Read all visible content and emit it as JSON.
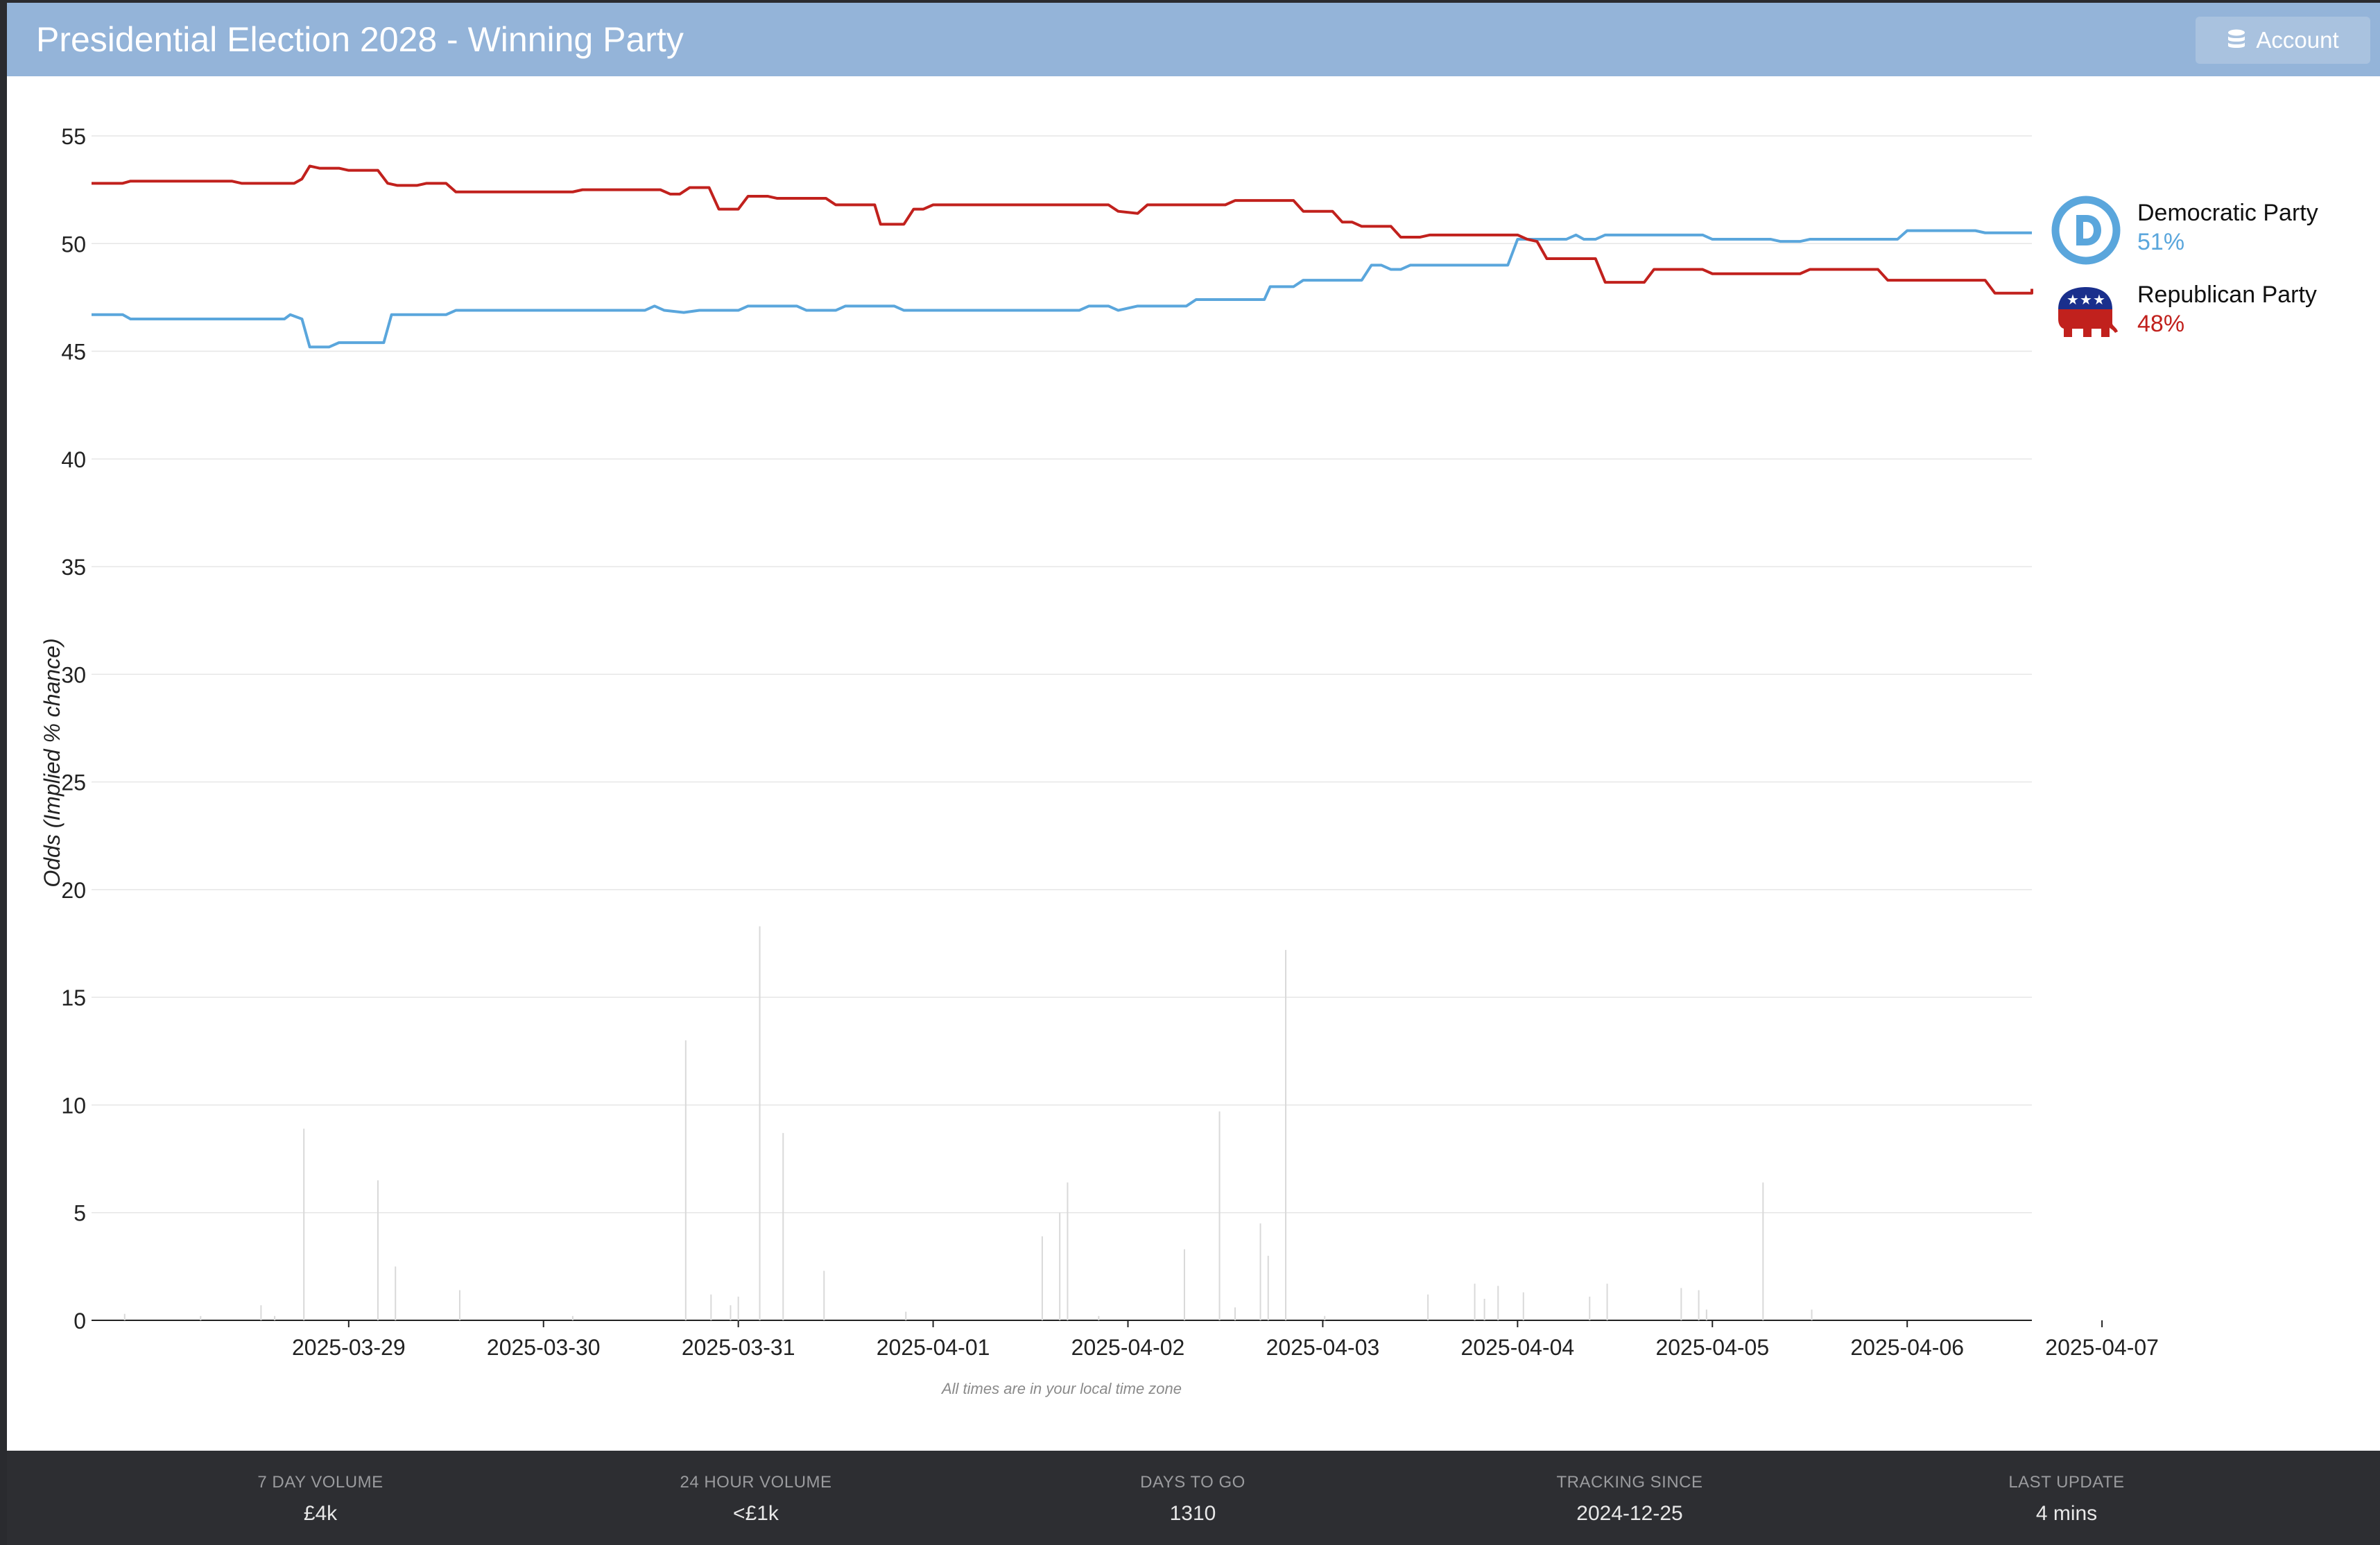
{
  "header": {
    "title": "Presidential Election 2028 - Winning Party",
    "account_label": "Account"
  },
  "legend": [
    {
      "name": "Democratic Party",
      "pct": "51%",
      "color": "#5aa6dc",
      "icon": "democratic-donkey-logo-icon"
    },
    {
      "name": "Republican Party",
      "pct": "48%",
      "color": "#c1211d",
      "icon": "republican-elephant-logo-icon"
    }
  ],
  "chart_data": {
    "type": "line",
    "ylabel": "Odds (Implied % chance)",
    "xlabel": "",
    "note": "All times are in your local time zone",
    "ylim": [
      0,
      55
    ],
    "yticks": [
      0,
      5,
      10,
      15,
      20,
      25,
      30,
      35,
      40,
      45,
      50,
      55
    ],
    "grid": true,
    "legend_position": "right",
    "x_start": "2025-03-28",
    "xlim": [
      -0.32,
      9.64
    ],
    "xticks": [
      "2025-03-29",
      "2025-03-30",
      "2025-03-31",
      "2025-04-01",
      "2025-04-02",
      "2025-04-03",
      "2025-04-04",
      "2025-04-05",
      "2025-04-06",
      "2025-04-07"
    ],
    "series": [
      {
        "name": "Democratic Party",
        "color": "#5aa6dc",
        "points": [
          [
            -0.32,
            46.7
          ],
          [
            -0.16,
            46.7
          ],
          [
            -0.12,
            46.5
          ],
          [
            0.67,
            46.5
          ],
          [
            0.7,
            46.7
          ],
          [
            0.76,
            46.5
          ],
          [
            0.8,
            45.2
          ],
          [
            0.9,
            45.2
          ],
          [
            0.95,
            45.4
          ],
          [
            1.18,
            45.4
          ],
          [
            1.22,
            46.7
          ],
          [
            1.5,
            46.7
          ],
          [
            1.55,
            46.9
          ],
          [
            2.52,
            46.9
          ],
          [
            2.57,
            47.1
          ],
          [
            2.62,
            46.9
          ],
          [
            2.72,
            46.8
          ],
          [
            2.8,
            46.9
          ],
          [
            3.0,
            46.9
          ],
          [
            3.05,
            47.1
          ],
          [
            3.3,
            47.1
          ],
          [
            3.35,
            46.9
          ],
          [
            3.5,
            46.9
          ],
          [
            3.55,
            47.1
          ],
          [
            3.8,
            47.1
          ],
          [
            3.85,
            46.9
          ],
          [
            4.75,
            46.9
          ],
          [
            4.8,
            47.1
          ],
          [
            4.9,
            47.1
          ],
          [
            4.95,
            46.9
          ],
          [
            5.05,
            47.1
          ],
          [
            5.3,
            47.1
          ],
          [
            5.35,
            47.4
          ],
          [
            5.7,
            47.4
          ],
          [
            5.73,
            48.0
          ],
          [
            5.85,
            48.0
          ],
          [
            5.9,
            48.3
          ],
          [
            6.2,
            48.3
          ],
          [
            6.25,
            49.0
          ],
          [
            6.3,
            49.0
          ],
          [
            6.35,
            48.8
          ],
          [
            6.4,
            48.8
          ],
          [
            6.45,
            49.0
          ],
          [
            6.95,
            49.0
          ],
          [
            7.0,
            50.2
          ],
          [
            7.25,
            50.2
          ],
          [
            7.3,
            50.4
          ],
          [
            7.34,
            50.2
          ],
          [
            7.4,
            50.2
          ],
          [
            7.45,
            50.4
          ],
          [
            7.95,
            50.4
          ],
          [
            8.0,
            50.2
          ],
          [
            8.3,
            50.2
          ],
          [
            8.35,
            50.1
          ],
          [
            8.45,
            50.1
          ],
          [
            8.5,
            50.2
          ],
          [
            8.95,
            50.2
          ],
          [
            9.0,
            50.6
          ],
          [
            9.35,
            50.6
          ],
          [
            9.4,
            50.5
          ],
          [
            9.64,
            50.5
          ]
        ]
      },
      {
        "name": "Republican Party",
        "color": "#c1211d",
        "points": [
          [
            -0.32,
            52.8
          ],
          [
            -0.16,
            52.8
          ],
          [
            -0.12,
            52.9
          ],
          [
            0.4,
            52.9
          ],
          [
            0.45,
            52.8
          ],
          [
            0.72,
            52.8
          ],
          [
            0.76,
            53.0
          ],
          [
            0.8,
            53.6
          ],
          [
            0.85,
            53.5
          ],
          [
            0.95,
            53.5
          ],
          [
            1.0,
            53.4
          ],
          [
            1.15,
            53.4
          ],
          [
            1.2,
            52.8
          ],
          [
            1.25,
            52.7
          ],
          [
            1.35,
            52.7
          ],
          [
            1.4,
            52.8
          ],
          [
            1.5,
            52.8
          ],
          [
            1.55,
            52.4
          ],
          [
            2.15,
            52.4
          ],
          [
            2.2,
            52.5
          ],
          [
            2.6,
            52.5
          ],
          [
            2.65,
            52.3
          ],
          [
            2.7,
            52.3
          ],
          [
            2.75,
            52.6
          ],
          [
            2.85,
            52.6
          ],
          [
            2.9,
            51.6
          ],
          [
            3.0,
            51.6
          ],
          [
            3.05,
            52.2
          ],
          [
            3.15,
            52.2
          ],
          [
            3.2,
            52.1
          ],
          [
            3.45,
            52.1
          ],
          [
            3.5,
            51.8
          ],
          [
            3.7,
            51.8
          ],
          [
            3.73,
            50.9
          ],
          [
            3.85,
            50.9
          ],
          [
            3.9,
            51.6
          ],
          [
            3.95,
            51.6
          ],
          [
            4.0,
            51.8
          ],
          [
            4.9,
            51.8
          ],
          [
            4.95,
            51.5
          ],
          [
            5.05,
            51.4
          ],
          [
            5.1,
            51.8
          ],
          [
            5.5,
            51.8
          ],
          [
            5.55,
            52.0
          ],
          [
            5.85,
            52.0
          ],
          [
            5.9,
            51.5
          ],
          [
            6.05,
            51.5
          ],
          [
            6.1,
            51.0
          ],
          [
            6.15,
            51.0
          ],
          [
            6.2,
            50.8
          ],
          [
            6.35,
            50.8
          ],
          [
            6.4,
            50.3
          ],
          [
            6.5,
            50.3
          ],
          [
            6.55,
            50.4
          ],
          [
            7.0,
            50.4
          ],
          [
            7.05,
            50.2
          ],
          [
            7.1,
            50.1
          ],
          [
            7.15,
            49.3
          ],
          [
            7.4,
            49.3
          ],
          [
            7.45,
            48.2
          ],
          [
            7.65,
            48.2
          ],
          [
            7.7,
            48.8
          ],
          [
            7.95,
            48.8
          ],
          [
            8.0,
            48.6
          ],
          [
            8.45,
            48.6
          ],
          [
            8.5,
            48.8
          ],
          [
            8.85,
            48.8
          ],
          [
            8.9,
            48.3
          ],
          [
            9.4,
            48.3
          ],
          [
            9.45,
            47.7
          ],
          [
            9.72,
            47.7
          ],
          [
            9.78,
            47.9
          ],
          [
            9.64,
            47.9
          ]
        ]
      },
      {
        "name": "Volume",
        "type": "bar",
        "color": "#d9d9d9",
        "points": [
          [
            -0.15,
            0.3
          ],
          [
            0.24,
            0.2
          ],
          [
            0.55,
            0.7
          ],
          [
            0.62,
            0.2
          ],
          [
            0.77,
            8.9
          ],
          [
            1.15,
            6.5
          ],
          [
            1.24,
            2.5
          ],
          [
            1.57,
            1.4
          ],
          [
            2.15,
            0.2
          ],
          [
            2.73,
            13.0
          ],
          [
            2.86,
            1.2
          ],
          [
            2.96,
            0.7
          ],
          [
            3.0,
            1.1
          ],
          [
            3.11,
            18.3
          ],
          [
            3.23,
            8.7
          ],
          [
            3.44,
            2.3
          ],
          [
            3.86,
            0.4
          ],
          [
            4.56,
            3.9
          ],
          [
            4.65,
            5.0
          ],
          [
            4.69,
            6.4
          ],
          [
            4.85,
            0.2
          ],
          [
            5.29,
            3.3
          ],
          [
            5.47,
            9.7
          ],
          [
            5.55,
            0.6
          ],
          [
            5.68,
            4.5
          ],
          [
            5.72,
            3.0
          ],
          [
            5.81,
            17.2
          ],
          [
            6.01,
            0.2
          ],
          [
            6.54,
            1.2
          ],
          [
            6.78,
            1.7
          ],
          [
            6.83,
            1.0
          ],
          [
            6.9,
            1.6
          ],
          [
            7.03,
            1.3
          ],
          [
            7.37,
            1.1
          ],
          [
            7.46,
            1.7
          ],
          [
            7.84,
            1.5
          ],
          [
            7.93,
            1.4
          ],
          [
            7.97,
            0.5
          ],
          [
            8.26,
            6.4
          ],
          [
            8.51,
            0.5
          ]
        ]
      }
    ]
  },
  "footer": {
    "stats": [
      {
        "label": "7 DAY VOLUME",
        "value": "£4k"
      },
      {
        "label": "24 HOUR VOLUME",
        "value": "<£1k"
      },
      {
        "label": "DAYS TO GO",
        "value": "1310"
      },
      {
        "label": "TRACKING SINCE",
        "value": "2024-12-25"
      },
      {
        "label": "LAST UPDATE",
        "value": "4 mins"
      }
    ]
  }
}
